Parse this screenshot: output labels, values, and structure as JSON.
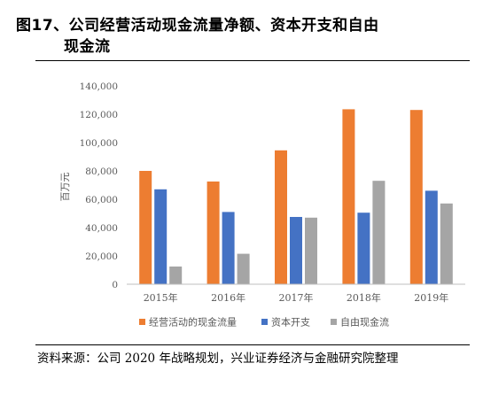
{
  "title_line1": "图17、公司经营活动现金流量净额、资本开支和自由",
  "title_line2": "现金流",
  "source": "资料来源：公司 2020 年战略规划，兴业证券经济与金融研究院整理",
  "chart_data": {
    "type": "bar",
    "ylabel": "百万元",
    "ylim": [
      0,
      140000
    ],
    "yticks": [
      0,
      20000,
      40000,
      60000,
      80000,
      100000,
      120000,
      140000
    ],
    "ytick_labels": [
      "0",
      "20,000",
      "40,000",
      "60,000",
      "80,000",
      "100,000",
      "120,000",
      "140,000"
    ],
    "categories": [
      "2015年",
      "2016年",
      "2017年",
      "2018年",
      "2019年"
    ],
    "series": [
      {
        "name": "经营活动的现金流量",
        "color": "#ED7D31",
        "values": [
          80000,
          72500,
          94500,
          123500,
          123000
        ]
      },
      {
        "name": "资本开支",
        "color": "#4472C4",
        "values": [
          67000,
          51000,
          47500,
          50500,
          66000
        ]
      },
      {
        "name": "自由现金流",
        "color": "#A5A5A5",
        "values": [
          12500,
          21500,
          47000,
          73000,
          57000
        ]
      }
    ],
    "legend_position": "bottom",
    "grid": false
  }
}
